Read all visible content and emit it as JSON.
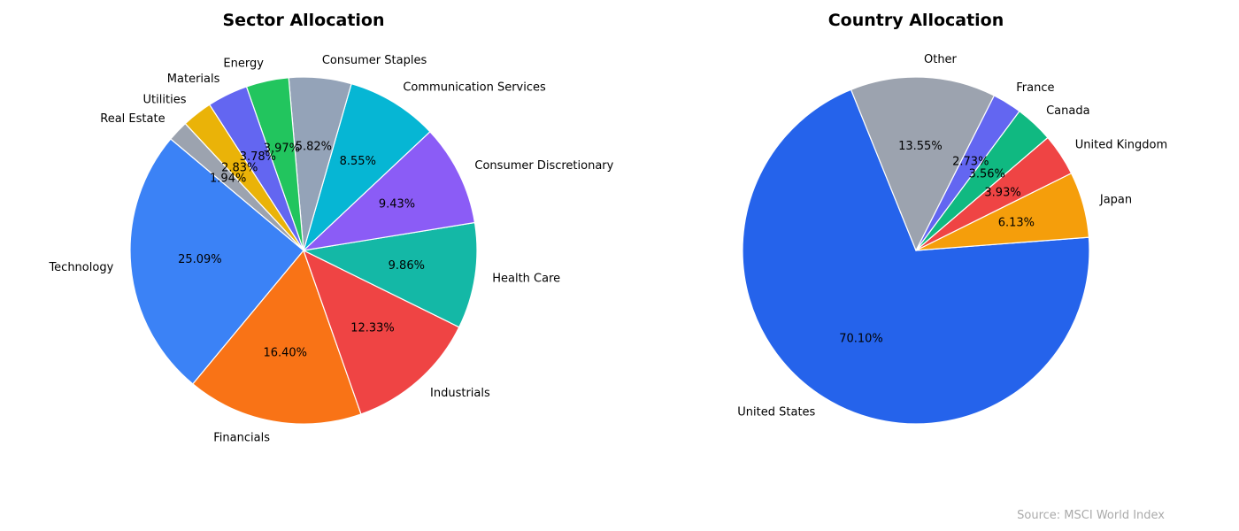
{
  "chart_data": [
    {
      "type": "pie",
      "title": "Sector Allocation",
      "start_angle_deg": 140,
      "direction": "counterclockwise",
      "categories": [
        "Technology",
        "Financials",
        "Industrials",
        "Health Care",
        "Consumer Discretionary",
        "Communication Services",
        "Consumer Staples",
        "Energy",
        "Materials",
        "Utilities",
        "Real Estate"
      ],
      "values": [
        25.09,
        16.4,
        12.33,
        9.86,
        9.43,
        8.55,
        5.82,
        3.97,
        3.78,
        2.83,
        1.94
      ],
      "value_labels": [
        "25.09%",
        "16.40%",
        "12.33%",
        "9.86%",
        "9.43%",
        "8.55%",
        "5.82%",
        "3.97%",
        "3.78%",
        "2.83%",
        "1.94%"
      ],
      "colors": [
        "#3b82f6",
        "#f97316",
        "#ef4444",
        "#14b8a6",
        "#8b5cf6",
        "#06b6d4",
        "#94a3b8",
        "#22c55e",
        "#6366f1",
        "#eab308",
        "#9ca3af"
      ]
    },
    {
      "type": "pie",
      "title": "Country Allocation",
      "start_angle_deg": 112,
      "direction": "counterclockwise",
      "categories": [
        "United States",
        "Japan",
        "United Kingdom",
        "Canada",
        "France",
        "Other"
      ],
      "values": [
        70.1,
        6.13,
        3.93,
        3.56,
        2.73,
        13.55
      ],
      "value_labels": [
        "70.10%",
        "6.13%",
        "3.93%",
        "3.56%",
        "2.73%",
        "13.55%"
      ],
      "colors": [
        "#2563eb",
        "#f59e0b",
        "#ef4444",
        "#10b981",
        "#6366f1",
        "#9ca3af"
      ]
    }
  ],
  "source": "Source: MSCI World Index"
}
